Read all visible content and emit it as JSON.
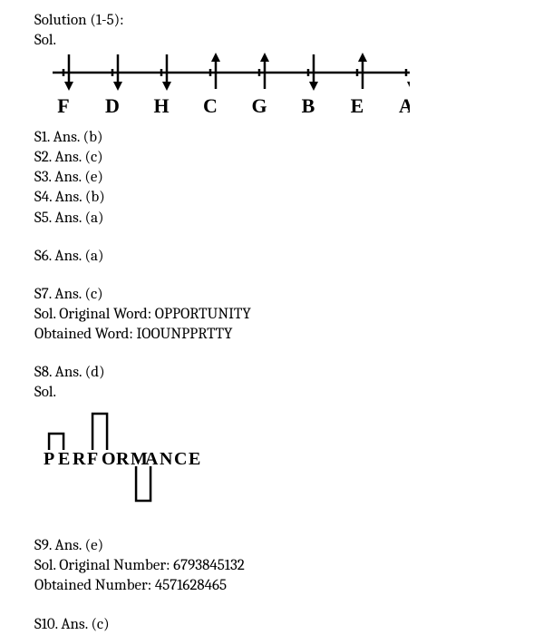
{
  "header": {
    "title": "Solution (1-5):",
    "sol_label": "Sol."
  },
  "diagram1": {
    "letters": [
      "F",
      "D",
      "H",
      "C",
      "G",
      "B",
      "E",
      "A"
    ],
    "directions": [
      "down",
      "down",
      "down",
      "up",
      "up",
      "down",
      "up",
      "down"
    ],
    "line_color": "#000000",
    "letter_fontsize": 22,
    "letter_fontweight": "bold"
  },
  "answers_1_5": [
    "S1. Ans. (b)",
    "S2. Ans. (c)",
    "S3. Ans. (e)",
    "S4. Ans. (b)",
    "S5. Ans. (a)"
  ],
  "s6": "S6. Ans. (a)",
  "s7": {
    "ans": "S7. Ans. (c)",
    "line1": "Sol. Original Word: OPPORTUNITY",
    "line2": "Obtained Word: IOOUNPPRTTY"
  },
  "s8": {
    "ans": "S8. Ans. (d)",
    "sol_label": "Sol."
  },
  "diagram2": {
    "word": "PERFORMANCE",
    "fontsize": 20,
    "fontweight": "bold",
    "bracket_color": "#000000",
    "top_brackets": [
      {
        "start_idx": 0,
        "end_idx": 1,
        "height": 18
      },
      {
        "start_idx": 3,
        "end_idx": 4,
        "height": 40
      }
    ],
    "bottom_brackets": [
      {
        "start_idx": 6,
        "end_idx": 7,
        "height": 40
      }
    ]
  },
  "s9": {
    "ans": "S9. Ans. (e)",
    "line1": "Sol. Original Number: 6793845132",
    "line2": "Obtained Number: 4571628465"
  },
  "s10": "S10. Ans. (c)"
}
